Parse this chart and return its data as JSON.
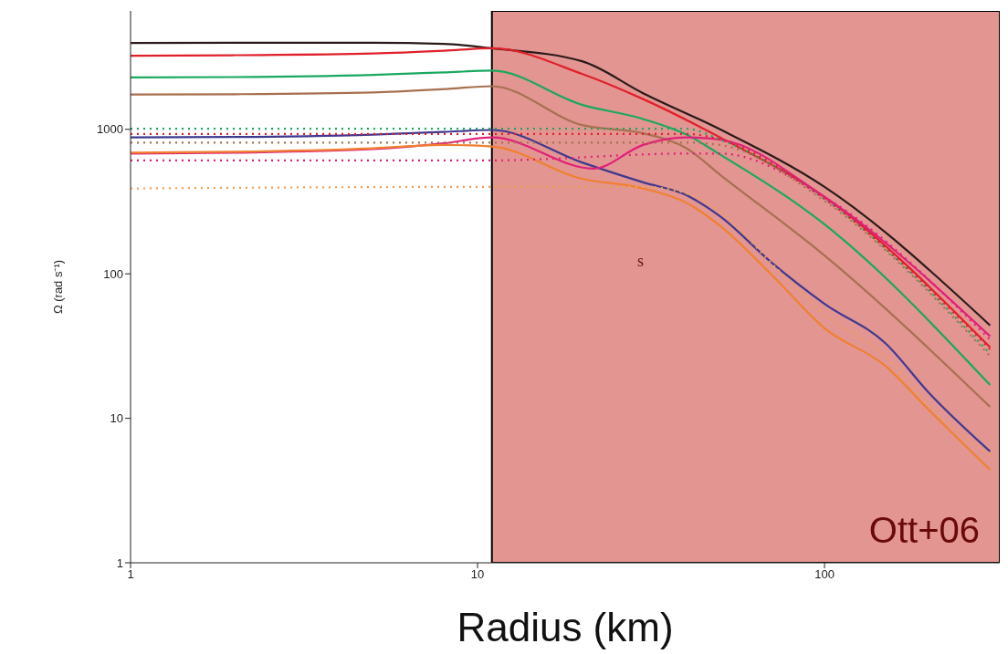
{
  "chart_data": {
    "type": "line",
    "xlabel": "Radius (km)",
    "ylabel": "Ω (rad s⁻¹)",
    "log": "xy",
    "xlim": [
      1,
      320
    ],
    "ylim": [
      1,
      6600
    ],
    "xticks": [
      1,
      10,
      100
    ],
    "yticks": [
      1,
      10,
      100,
      1000
    ],
    "marker": "none",
    "bands": [
      {
        "axis": "x",
        "from": 11,
        "to": 320,
        "label": "Ott+06",
        "color": "#e08a85"
      }
    ],
    "annotations": [
      "s"
    ],
    "series": [
      {
        "color": "#2a1a1a",
        "line_style": "solid",
        "x": [
          1,
          2,
          5,
          8,
          11,
          20,
          30,
          50,
          100,
          300
        ],
        "values": [
          3960,
          3970,
          3980,
          3900,
          3640,
          2960,
          1780,
          1000,
          400,
          44
        ]
      },
      {
        "color": "#e0202a",
        "line_style": "solid",
        "x": [
          1,
          2,
          5,
          8,
          11,
          20,
          30,
          50,
          100,
          300
        ],
        "values": [
          3230,
          3260,
          3350,
          3500,
          3640,
          2420,
          1620,
          880,
          340,
          31
        ]
      },
      {
        "color": "#1aa860",
        "line_style": "solid",
        "x": [
          1,
          2,
          5,
          8,
          11,
          20,
          30,
          40,
          50,
          100,
          300
        ],
        "values": [
          2290,
          2300,
          2380,
          2480,
          2550,
          1480,
          1180,
          920,
          670,
          220,
          17
        ]
      },
      {
        "color": "#a87050",
        "line_style": "solid",
        "x": [
          1,
          2,
          5,
          8,
          11,
          20,
          30,
          40,
          50,
          100,
          300
        ],
        "values": [
          1740,
          1750,
          1800,
          1900,
          1990,
          1070,
          940,
          740,
          485,
          134,
          12
        ]
      },
      {
        "color": "#403890",
        "line_style": "solid",
        "x": [
          1,
          2,
          5,
          8,
          11,
          20,
          30,
          40,
          50,
          70,
          100,
          150,
          200,
          300
        ],
        "values": [
          880,
          885,
          920,
          960,
          990,
          590,
          430,
          350,
          250,
          121,
          62,
          33,
          15,
          5.9
        ]
      },
      {
        "color": "#e0207a",
        "line_style": "solid",
        "x": [
          1,
          2,
          5,
          8,
          11,
          21.6,
          30,
          40,
          50,
          100,
          300
        ],
        "values": [
          680,
          690,
          730,
          800,
          880,
          535,
          780,
          880,
          850,
          340,
          37
        ]
      },
      {
        "color": "#f08030",
        "line_style": "solid",
        "x": [
          1,
          2,
          5,
          8,
          11,
          20,
          30,
          40,
          50,
          70,
          100,
          150,
          200,
          300
        ],
        "values": [
          690,
          700,
          740,
          780,
          760,
          455,
          390,
          310,
          215,
          100,
          42,
          23,
          11.4,
          4.4
        ]
      },
      {
        "color": "#1aa860",
        "line_style": "dotted",
        "x": [
          1,
          11,
          40,
          50,
          100,
          300
        ],
        "values": [
          1010,
          1010,
          1010,
          850,
          330,
          28
        ]
      },
      {
        "color": "#e0202a",
        "line_style": "dotted",
        "x": [
          1,
          11,
          40,
          50,
          100,
          300
        ],
        "values": [
          930,
          930,
          930,
          850,
          330,
          30
        ]
      },
      {
        "color": "#a87050",
        "line_style": "dotted",
        "x": [
          1,
          11,
          40,
          50,
          100,
          300
        ],
        "values": [
          810,
          810,
          810,
          780,
          320,
          27
        ]
      },
      {
        "color": "#e0207a",
        "line_style": "dotted",
        "x": [
          1,
          11,
          40,
          50,
          100,
          300
        ],
        "values": [
          610,
          610,
          680,
          680,
          340,
          35
        ]
      },
      {
        "color": "#f0a050",
        "line_style": "dotted",
        "x": [
          1,
          11,
          30,
          40,
          50,
          70,
          100,
          150,
          200,
          300
        ],
        "values": [
          390,
          400,
          400,
          360,
          270,
          120,
          52,
          27,
          12,
          5.6
        ]
      }
    ]
  }
}
